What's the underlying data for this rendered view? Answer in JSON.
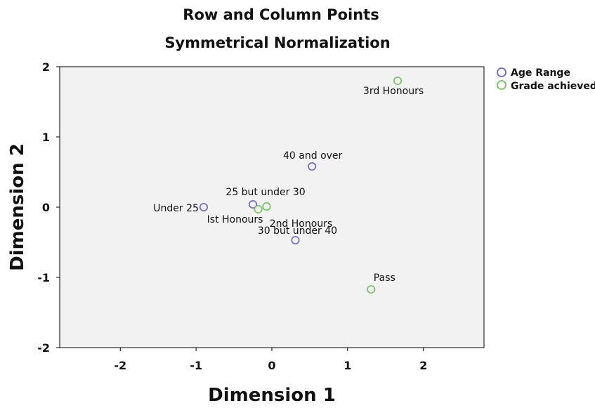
{
  "chart_data": {
    "type": "scatter",
    "title": "Row and Column Points",
    "subtitle": "Symmetrical Normalization",
    "xlabel": "Dimension 1",
    "ylabel": "Dimension 2",
    "xlim": [
      -2.8,
      2.8
    ],
    "ylim": [
      -2.0,
      2.0
    ],
    "x_ticks": [
      -2,
      -1,
      0,
      1,
      2
    ],
    "y_ticks": [
      2,
      1,
      0,
      -1,
      -2
    ],
    "series": [
      {
        "name": "Age Range",
        "color": "#6a6ad0",
        "points": [
          {
            "label": "Under 25",
            "x": -0.9,
            "y": 0.0
          },
          {
            "label": "25 but under 30",
            "x": -0.25,
            "y": 0.04
          },
          {
            "label": "30 but under 40",
            "x": 0.31,
            "y": -0.47
          },
          {
            "label": "40 and over",
            "x": 0.53,
            "y": 0.58
          }
        ]
      },
      {
        "name": "Grade achieved",
        "color": "#73c55f",
        "points": [
          {
            "label": "3rd Honours",
            "x": 1.66,
            "y": 1.8
          },
          {
            "label": "Ist Honours",
            "x": -0.18,
            "y": -0.03
          },
          {
            "label": "2nd Honours",
            "x": -0.07,
            "y": 0.01
          },
          {
            "label": "Pass",
            "x": 1.31,
            "y": -1.17
          }
        ]
      }
    ],
    "legend_position": "top-right",
    "grid": false
  }
}
